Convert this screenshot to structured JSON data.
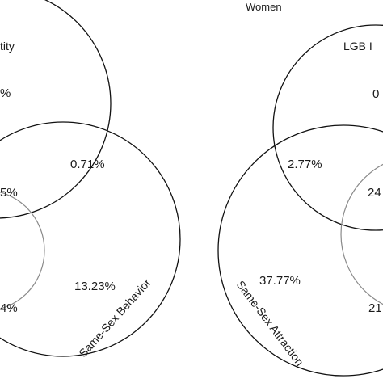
{
  "left_panel": {
    "labels": {
      "identity": "tity",
      "behavior": "Same-Sex Behavior"
    },
    "values": {
      "identity_only": "%",
      "identity_behavior": "0.71%",
      "three_way": "5%",
      "attraction_only": "4%",
      "behavior_only": "13.23%"
    }
  },
  "right_panel": {
    "title": "Women",
    "labels": {
      "identity": "LGB I",
      "attraction": "Same-Sex Attraction"
    },
    "values": {
      "identity_only": "0",
      "identity_attraction": "2.77%",
      "three_way": "24",
      "attraction_only": "37.77%",
      "attraction_behavior": "21"
    }
  }
}
